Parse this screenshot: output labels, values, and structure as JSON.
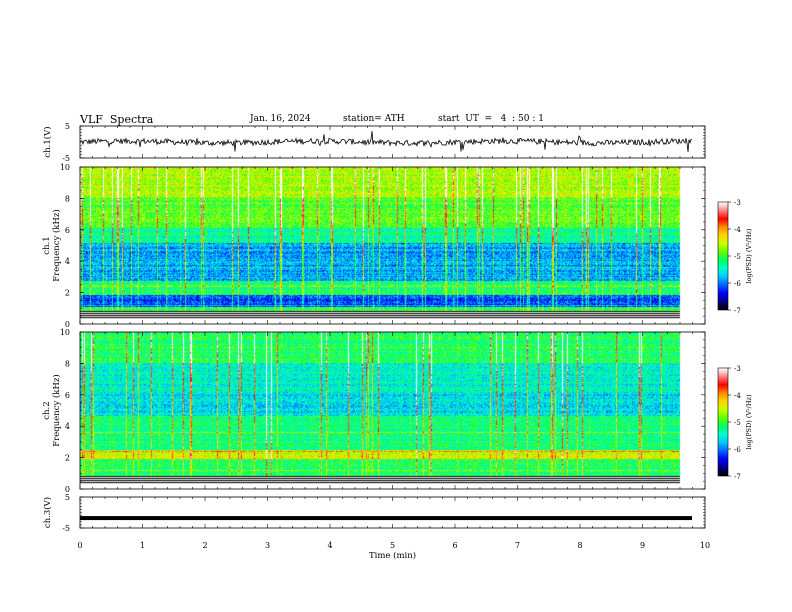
{
  "header": {
    "title": "VLF  Spectra",
    "date": "Jan. 16, 2024",
    "station": "station= ATH",
    "start": "start  UT  =   4  : 50 : 1"
  },
  "colors": {
    "ink": "#000000",
    "colormap": [
      "#000000",
      "#00008b",
      "#0000ff",
      "#0064ff",
      "#00c8ff",
      "#00ffc8",
      "#00ff64",
      "#64ff00",
      "#c8ff00",
      "#ffd700",
      "#ff8c00",
      "#ff0000",
      "#ff8080",
      "#ffffff"
    ]
  },
  "chart_data": [
    {
      "type": "line",
      "name": "ch1-waveform",
      "ylabel": "ch.1(V)",
      "ylim": [
        -5,
        5
      ],
      "yticks": [
        "5",
        "-5"
      ],
      "xlim": [
        0,
        10
      ],
      "baseline": 0.0,
      "noise": 0.9
    },
    {
      "type": "heatmap",
      "name": "ch1-spectrogram",
      "ylabel": "ch.1\nFrequency  (kHz)",
      "ylim": [
        0,
        10
      ],
      "yticks": [
        "0",
        "2",
        "4",
        "6",
        "8",
        "10"
      ],
      "xlim": [
        0,
        10
      ],
      "data_end_min": 9.8,
      "colorbar": {
        "label": "log(PSD) (V²/Hz)",
        "range": [
          -7,
          -3
        ],
        "ticks": [
          "-3",
          "-4",
          "-5",
          "-6",
          "-7"
        ]
      }
    },
    {
      "type": "heatmap",
      "name": "ch2-spectrogram",
      "ylabel": "ch.2\nFrequency  (kHz)",
      "ylim": [
        0,
        10
      ],
      "yticks": [
        "0",
        "2",
        "4",
        "6",
        "8",
        "10"
      ],
      "xlim": [
        0,
        10
      ],
      "data_end_min": 9.8,
      "colorbar": {
        "label": "log(PSD) (V²/Hz)",
        "range": [
          -7,
          -3
        ],
        "ticks": [
          "-3",
          "-4",
          "-5",
          "-6",
          "-7"
        ]
      }
    },
    {
      "type": "line",
      "name": "ch3-waveform",
      "ylabel": "ch.3(V)",
      "ylim": [
        -5,
        5
      ],
      "yticks": [
        "5",
        "-5"
      ],
      "xlim": [
        0,
        10
      ],
      "xlabel": "Time  (min)",
      "xticks": [
        "0",
        "1",
        "2",
        "3",
        "4",
        "5",
        "6",
        "7",
        "8",
        "9",
        "10"
      ],
      "baseline": -1.8
    }
  ]
}
